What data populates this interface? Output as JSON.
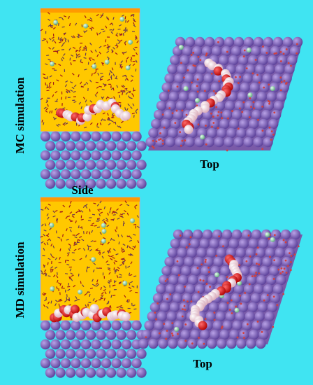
{
  "labels": {
    "mc": "MC simulation",
    "side": "Side",
    "top_mc": "Top",
    "md": "MD simulation",
    "top_md": "Top"
  }
}
